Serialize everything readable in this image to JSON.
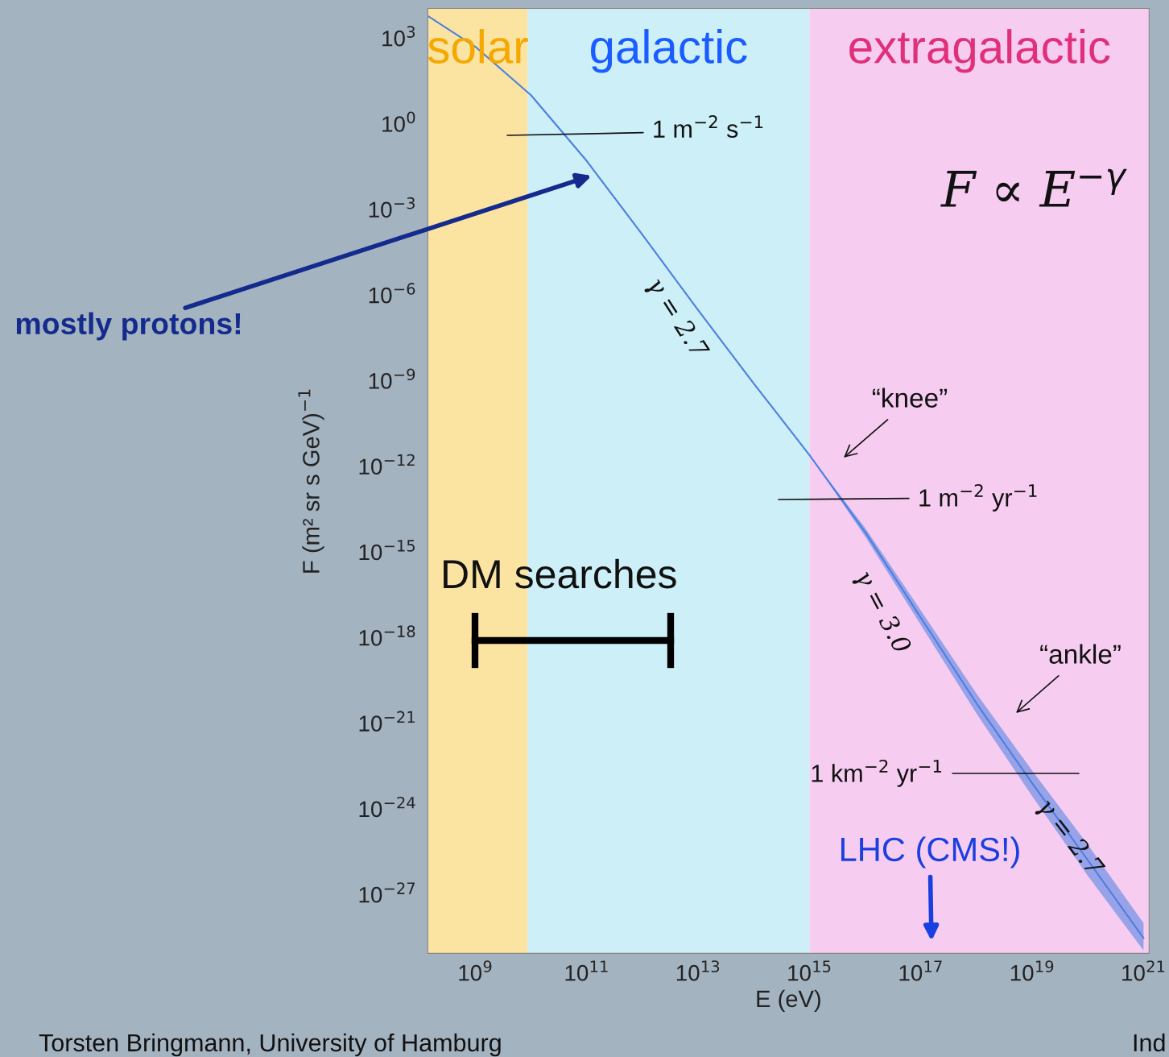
{
  "chart_data": {
    "type": "line",
    "xlabel": "E (eV)",
    "ylabel": "F (m² sr s GeV)$^{−1}$",
    "log": "xy",
    "grid": false,
    "xlim": [
      140000000.0,
      1.26e+21
    ],
    "ylim": [
      8.7e-30,
      11000.0
    ],
    "xticks": [
      {
        "value": 1000000000.0,
        "label": "10$^{9}$"
      },
      {
        "value": 100000000000.0,
        "label": "10$^{11}$"
      },
      {
        "value": 10000000000000.0,
        "label": "10$^{13}$"
      },
      {
        "value": 1000000000000000.0,
        "label": "10$^{15}$"
      },
      {
        "value": 1e+17,
        "label": "10$^{17}$"
      },
      {
        "value": 1e+19,
        "label": "10$^{19}$"
      },
      {
        "value": 1e+21,
        "label": "10$^{21}$"
      }
    ],
    "yticks": [
      {
        "value": 1000.0,
        "label": "10$^{3}$"
      },
      {
        "value": 1,
        "label": "10$^{0}$"
      },
      {
        "value": 0.001,
        "label": "10$^{−3}$"
      },
      {
        "value": 1e-06,
        "label": "10$^{−6}$"
      },
      {
        "value": 1e-09,
        "label": "10$^{−9}$"
      },
      {
        "value": 1e-12,
        "label": "10$^{−12}$"
      },
      {
        "value": 1e-15,
        "label": "10$^{−15}$"
      },
      {
        "value": 1e-18,
        "label": "10$^{−18}$"
      },
      {
        "value": 1e-21,
        "label": "10$^{−21}$"
      },
      {
        "value": 1e-24,
        "label": "10$^{−24}$"
      },
      {
        "value": 1e-27,
        "label": "10$^{−27}$"
      }
    ],
    "bands": [
      {
        "axis": "x",
        "from": 140000000.0,
        "to": 8700000000.0,
        "label": "solar",
        "color": "#fbe3a2"
      },
      {
        "axis": "x",
        "from": 8700000000.0,
        "to": 1000000000000000.0,
        "label": "galactic",
        "color": "#cdeff8"
      },
      {
        "axis": "x",
        "from": 1000000000000000.0,
        "to": 1.26e+21,
        "label": "extragalactic",
        "color": "#f6cdf1"
      }
    ],
    "series": [
      {
        "color": "#4a7fe0",
        "x": [
          140000000.0,
          1000000000.0,
          10000000000.0,
          100000000000.0,
          1000000000000.0,
          10000000000000.0,
          100000000000000.0,
          1000000000000000.0,
          1e+16,
          1e+17,
          1e+18,
          1e+19,
          1e+20,
          1e+21
        ],
        "values": [
          6000.0,
          500,
          10,
          0.05,
          0.00013,
          3e-07,
          8e-10,
          2.5e-12,
          5e-15,
          5e-18,
          5e-21,
          8e-24,
          1.6e-26,
          3e-29
        ],
        "lower": [
          6000.0,
          500,
          10,
          0.05,
          0.00013,
          3e-07,
          8e-10,
          2.5e-12,
          3.5e-15,
          2.8e-18,
          2.2e-21,
          2.8e-24,
          4.5e-27,
          1.1e-29
        ],
        "upper": [
          6000.0,
          500,
          10,
          0.05,
          0.00013,
          3e-07,
          8e-10,
          2.5e-12,
          7e-15,
          9e-18,
          1.1e-20,
          2.2e-23,
          5.6e-26,
          1e-28
        ]
      }
    ],
    "annotations": [
      "1 m$^{−2}$ s$^{−1}$",
      "1 m$^{−2}$ yr$^{−1}$",
      "1 km$^{−2}$ yr$^{−1}$",
      "“knee”",
      "“ankle”",
      "γ = 2.7",
      "γ = 3.0",
      "γ = 2.7",
      "F ∝ E$^{−γ}$",
      "DM searches",
      "LHC (CMS!)",
      "mostly protons!",
      "Torsten Bringmann, University of Hamburg",
      "Ind"
    ]
  }
}
